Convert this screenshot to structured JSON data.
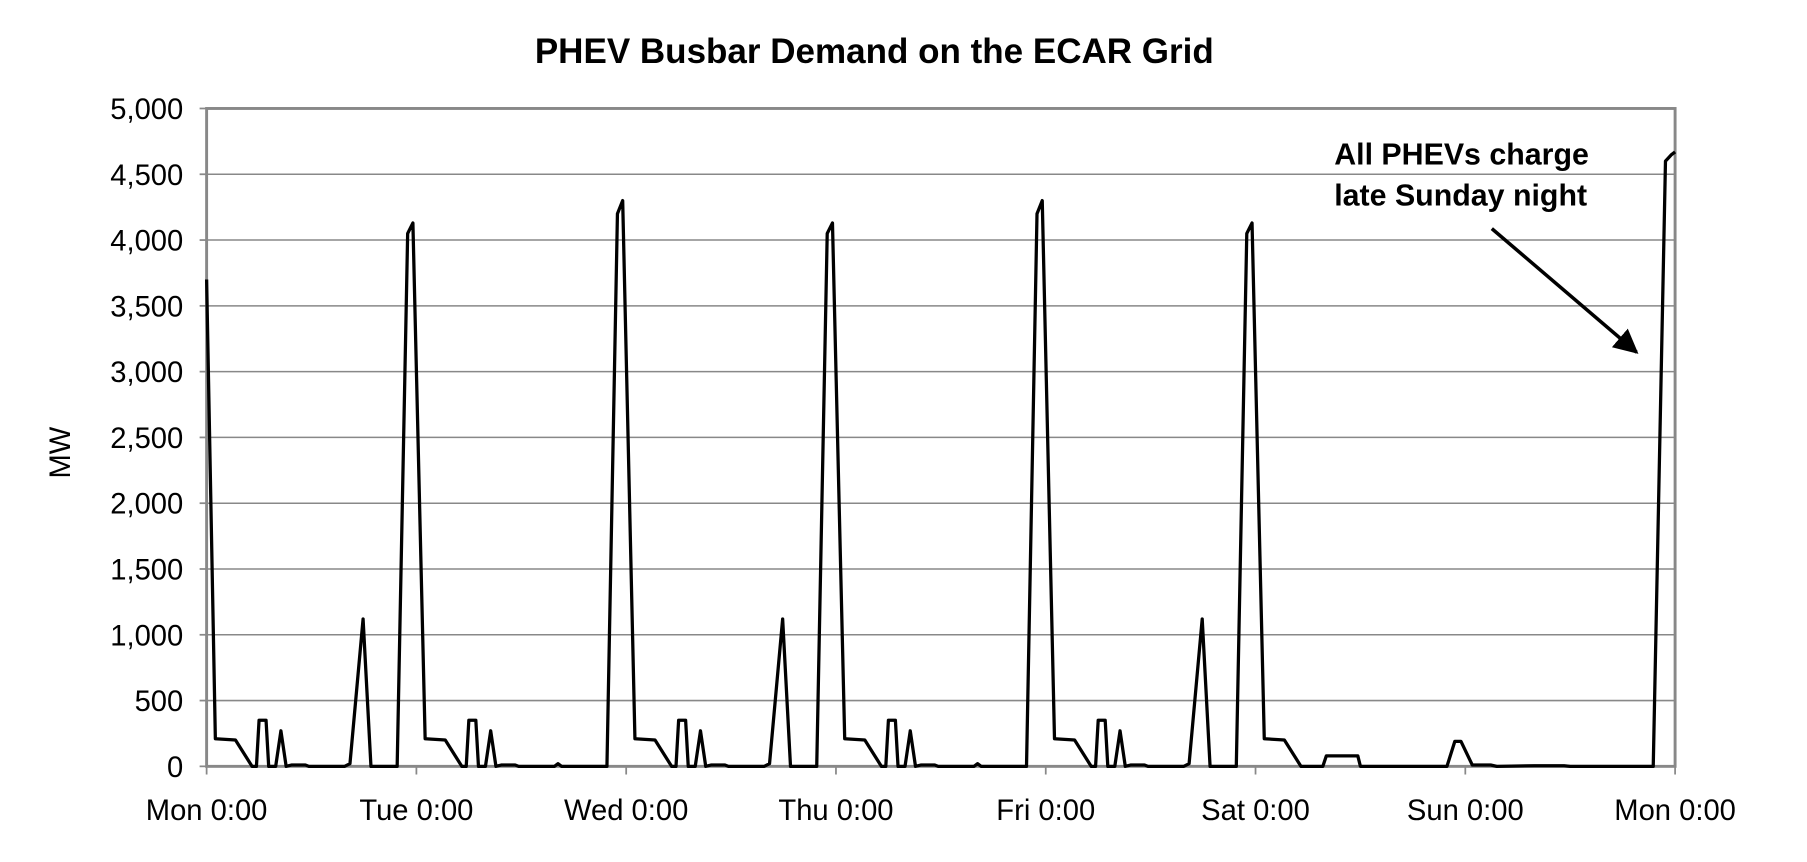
{
  "chart_data": {
    "type": "line",
    "title": "PHEV Busbar Demand on the ECAR Grid",
    "ylabel": "MW",
    "annotation": [
      "All PHEVs charge",
      "late Sunday night"
    ],
    "color": "#000000",
    "grid": true,
    "xlim": [
      0,
      168
    ],
    "ylim": [
      0,
      5000
    ],
    "xticks": [
      {
        "value": 0,
        "label": "Mon 0:00"
      },
      {
        "value": 24,
        "label": "Tue 0:00"
      },
      {
        "value": 48,
        "label": "Wed 0:00"
      },
      {
        "value": 72,
        "label": "Thu 0:00"
      },
      {
        "value": 96,
        "label": "Fri 0:00"
      },
      {
        "value": 120,
        "label": "Sat 0:00"
      },
      {
        "value": 144,
        "label": "Sun 0:00"
      },
      {
        "value": 168,
        "label": "Mon 0:00"
      }
    ],
    "yticks": [
      0,
      500,
      {
        "value": 1000,
        "label": "1,000"
      },
      {
        "value": 1500,
        "label": "1,500"
      },
      {
        "value": 2000,
        "label": "2,000"
      },
      {
        "value": 2500,
        "label": "2,500"
      },
      {
        "value": 3000,
        "label": "3,000"
      },
      {
        "value": 3500,
        "label": "3,500"
      },
      {
        "value": 4000,
        "label": "4,000"
      },
      {
        "value": 4500,
        "label": "4,500"
      },
      {
        "value": 5000,
        "label": "5,000"
      }
    ],
    "x": [
      0,
      1.0,
      3.3,
      5.2,
      5.7,
      6.0,
      6.8,
      7.1,
      7.9,
      8.5,
      9.1,
      9.7,
      11.3,
      11.7,
      15.8,
      16.4,
      17.9,
      18.8,
      21.8,
      23.0,
      23.6,
      25.0,
      27.3,
      29.2,
      29.7,
      30.0,
      30.8,
      31.1,
      31.9,
      32.5,
      33.1,
      33.7,
      35.3,
      35.7,
      39.8,
      40.2,
      40.6,
      45.8,
      47.0,
      47.6,
      49.0,
      51.3,
      53.2,
      53.7,
      54.0,
      54.8,
      55.1,
      55.9,
      56.5,
      57.1,
      57.7,
      59.3,
      59.7,
      63.8,
      64.4,
      65.9,
      66.8,
      69.8,
      71.0,
      71.6,
      73.0,
      75.3,
      77.2,
      77.7,
      78.0,
      78.8,
      79.1,
      79.9,
      80.5,
      81.1,
      81.7,
      83.3,
      83.7,
      87.8,
      88.2,
      88.6,
      93.8,
      95.0,
      95.6,
      97.0,
      99.3,
      101.2,
      101.7,
      102.0,
      102.8,
      103.1,
      103.9,
      104.5,
      105.1,
      105.7,
      107.3,
      107.7,
      111.8,
      112.4,
      113.9,
      114.8,
      117.8,
      119.0,
      119.6,
      121.0,
      123.3,
      125.2,
      127.7,
      128.1,
      131.7,
      132.0,
      141.9,
      142.8,
      143.5,
      144.8,
      146.9,
      147.6,
      151.9,
      155.3,
      156.0,
      165.5,
      166.9,
      167.6,
      168
    ],
    "values": [
      3700,
      210,
      200,
      0,
      0,
      350,
      350,
      0,
      0,
      270,
      0,
      10,
      10,
      0,
      0,
      20,
      1120,
      0,
      0,
      4050,
      4130,
      210,
      200,
      0,
      0,
      350,
      350,
      0,
      0,
      270,
      0,
      10,
      10,
      0,
      0,
      20,
      0,
      0,
      4200,
      4300,
      210,
      200,
      0,
      0,
      350,
      350,
      0,
      0,
      270,
      0,
      10,
      10,
      0,
      0,
      20,
      1120,
      0,
      0,
      4050,
      4130,
      210,
      200,
      0,
      0,
      350,
      350,
      0,
      0,
      270,
      0,
      10,
      10,
      0,
      0,
      20,
      0,
      0,
      4200,
      4300,
      210,
      200,
      0,
      0,
      350,
      350,
      0,
      0,
      270,
      0,
      10,
      10,
      0,
      0,
      20,
      1120,
      0,
      0,
      4050,
      4130,
      210,
      200,
      0,
      0,
      80,
      80,
      0,
      0,
      190,
      190,
      10,
      10,
      0,
      5,
      5,
      0,
      0,
      4600,
      4650,
      4670
    ]
  }
}
